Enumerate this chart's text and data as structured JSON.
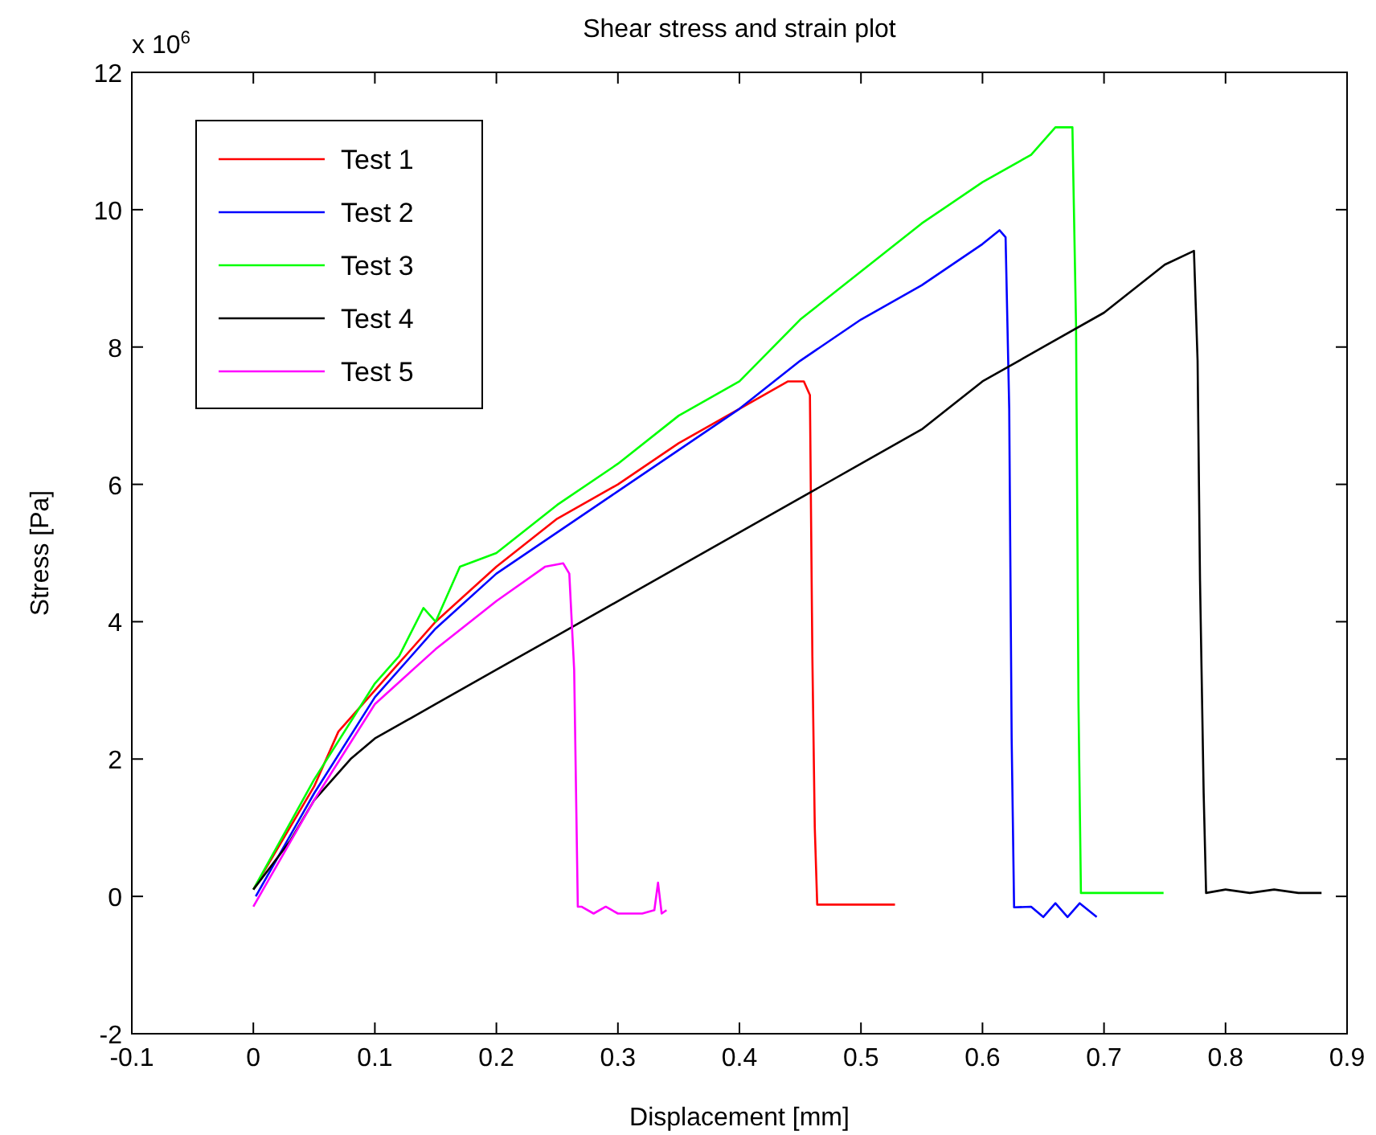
{
  "chart_data": {
    "type": "line",
    "title": "Shear stress and strain plot",
    "xlabel": "Displacement [mm]",
    "ylabel": "Stress [Pa]",
    "annotations": [
      "x 10$^{6}$"
    ],
    "xlim": [
      -0.1,
      0.9
    ],
    "xticks": [
      -0.1,
      0,
      0.1,
      0.2,
      0.3,
      0.4,
      0.5,
      0.6,
      0.7,
      0.8,
      0.9
    ],
    "ylim": [
      -2,
      12
    ],
    "yticks": [
      -2,
      0,
      2,
      4,
      6,
      8,
      10,
      12
    ],
    "grid": false,
    "legend": "top left",
    "marker": "none",
    "line_style": "solid",
    "series": [
      {
        "name": "Test 1",
        "color": "#ff0000",
        "x": [
          0,
          0.02,
          0.05,
          0.07,
          0.1,
          0.12,
          0.15,
          0.2,
          0.25,
          0.3,
          0.35,
          0.4,
          0.44,
          0.453,
          0.458,
          0.46,
          0.462,
          0.464,
          0.528
        ],
        "values": [
          0.1,
          0.7,
          1.6,
          2.4,
          3.0,
          3.4,
          4.0,
          4.8,
          5.5,
          6.0,
          6.6,
          7.1,
          7.5,
          7.5,
          7.3,
          3.5,
          1.0,
          -0.12,
          -0.12
        ]
      },
      {
        "name": "Test 2",
        "color": "#0000ff",
        "x": [
          0.002,
          0.05,
          0.1,
          0.15,
          0.2,
          0.25,
          0.3,
          0.35,
          0.4,
          0.45,
          0.5,
          0.55,
          0.6,
          0.614,
          0.619,
          0.622,
          0.624,
          0.626,
          0.64,
          0.65,
          0.66,
          0.67,
          0.68,
          0.694
        ],
        "values": [
          0,
          1.5,
          2.9,
          3.9,
          4.7,
          5.3,
          5.9,
          6.5,
          7.1,
          7.8,
          8.4,
          8.9,
          9.5,
          9.7,
          9.6,
          7.1,
          2.3,
          -0.16,
          -0.15,
          -0.3,
          -0.1,
          -0.3,
          -0.1,
          -0.3
        ]
      },
      {
        "name": "Test 3",
        "color": "#00ff00",
        "x": [
          0,
          0.05,
          0.1,
          0.12,
          0.14,
          0.15,
          0.17,
          0.2,
          0.25,
          0.3,
          0.35,
          0.4,
          0.45,
          0.5,
          0.55,
          0.6,
          0.64,
          0.66,
          0.674,
          0.677,
          0.679,
          0.681,
          0.749
        ],
        "values": [
          0.1,
          1.7,
          3.1,
          3.5,
          4.2,
          4.0,
          4.8,
          5.0,
          5.7,
          6.3,
          7.0,
          7.5,
          8.4,
          9.1,
          9.8,
          10.4,
          10.8,
          11.2,
          11.2,
          8.3,
          2.8,
          0.05,
          0.05
        ]
      },
      {
        "name": "Test 4",
        "color": "#000000",
        "x": [
          0,
          0.03,
          0.05,
          0.08,
          0.1,
          0.15,
          0.2,
          0.25,
          0.3,
          0.35,
          0.4,
          0.45,
          0.5,
          0.55,
          0.6,
          0.65,
          0.7,
          0.75,
          0.774,
          0.777,
          0.779,
          0.782,
          0.784,
          0.8,
          0.82,
          0.84,
          0.86,
          0.879
        ],
        "values": [
          0.1,
          0.8,
          1.4,
          2.0,
          2.3,
          2.8,
          3.3,
          3.8,
          4.3,
          4.8,
          5.3,
          5.8,
          6.3,
          6.8,
          7.5,
          8.0,
          8.5,
          9.2,
          9.4,
          7.8,
          4.6,
          1.5,
          0.05,
          0.1,
          0.05,
          0.1,
          0.05,
          0.05
        ]
      },
      {
        "name": "Test 5",
        "color": "#ff00ff",
        "x": [
          0,
          0.05,
          0.1,
          0.15,
          0.2,
          0.24,
          0.255,
          0.26,
          0.264,
          0.267,
          0.27,
          0.28,
          0.29,
          0.3,
          0.32,
          0.33,
          0.333,
          0.336,
          0.34
        ],
        "values": [
          -0.15,
          1.4,
          2.8,
          3.6,
          4.3,
          4.8,
          4.85,
          4.7,
          3.3,
          -0.15,
          -0.15,
          -0.25,
          -0.15,
          -0.25,
          -0.25,
          -0.2,
          0.2,
          -0.25,
          -0.2
        ]
      }
    ]
  }
}
